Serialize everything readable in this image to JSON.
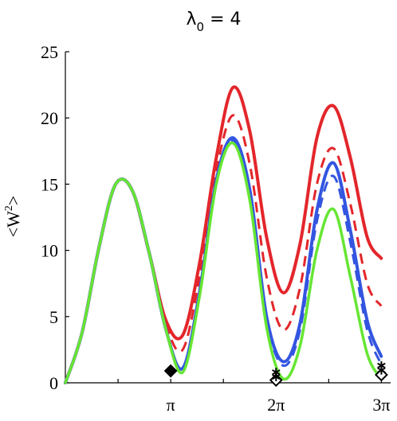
{
  "chart_data": {
    "type": "line",
    "title": {
      "symbol": "λ",
      "subscript": "0",
      "rest": " = 4"
    },
    "ylabel": {
      "main": "<W",
      "sup": "2",
      "end": ">"
    },
    "xlabel": "",
    "xlim": [
      0,
      9.7
    ],
    "ylim": [
      0,
      25
    ],
    "xticks": [
      {
        "value": 3.14159,
        "label": "π"
      },
      {
        "value": 6.28319,
        "label": "2π"
      },
      {
        "value": 9.42478,
        "label": "3π"
      }
    ],
    "yticks": [
      {
        "value": 0,
        "label": "0"
      },
      {
        "value": 5,
        "label": "5"
      },
      {
        "value": 10,
        "label": "10"
      },
      {
        "value": 15,
        "label": "15"
      },
      {
        "value": 20,
        "label": "20"
      },
      {
        "value": 25,
        "label": "25"
      }
    ],
    "series": [
      {
        "color": "#e3262b",
        "dash": "solid",
        "width": 4,
        "x": [
          0,
          0.5,
          1.0,
          1.5,
          2.0,
          2.5,
          3.0,
          3.5,
          4.0,
          4.5,
          5.0,
          5.5,
          6.0,
          6.5,
          7.0,
          7.5,
          8.0,
          8.5,
          9.0,
          9.42
        ],
        "y": [
          0,
          3.8,
          10.2,
          15.0,
          14.5,
          9.8,
          4.7,
          3.6,
          9.0,
          17.0,
          22.3,
          19.0,
          11.0,
          6.8,
          10.5,
          18.5,
          20.9,
          17.0,
          11.0,
          9.4
        ]
      },
      {
        "color": "#e3262b",
        "dash": "dashed",
        "width": 3,
        "x": [
          0,
          0.5,
          1.0,
          1.5,
          2.0,
          2.5,
          3.0,
          3.5,
          4.0,
          4.5,
          5.0,
          5.5,
          6.0,
          6.5,
          7.0,
          7.5,
          8.0,
          8.5,
          9.0,
          9.42
        ],
        "y": [
          0,
          3.8,
          10.2,
          15.0,
          14.5,
          9.8,
          4.4,
          2.5,
          8.0,
          16.0,
          20.2,
          16.5,
          8.0,
          4.0,
          7.2,
          15.0,
          17.7,
          13.5,
          7.5,
          5.8
        ]
      },
      {
        "color": "#3355e0",
        "dash": "solid",
        "width": 4,
        "x": [
          0,
          0.5,
          1.0,
          1.5,
          2.0,
          2.5,
          3.0,
          3.5,
          4.0,
          4.5,
          5.0,
          5.5,
          6.0,
          6.5,
          7.0,
          7.5,
          8.0,
          8.5,
          9.0,
          9.42
        ],
        "y": [
          0,
          3.8,
          10.2,
          15.0,
          14.5,
          9.8,
          4.0,
          1.1,
          6.8,
          15.3,
          18.5,
          14.6,
          5.0,
          1.6,
          4.5,
          13.0,
          16.6,
          11.5,
          4.7,
          2.0
        ]
      },
      {
        "color": "#3355e0",
        "dash": "dashed",
        "width": 3,
        "x": [
          0,
          0.5,
          1.0,
          1.5,
          2.0,
          2.5,
          3.0,
          3.5,
          4.0,
          4.5,
          5.0,
          5.5,
          6.0,
          6.5,
          7.0,
          7.5,
          8.0,
          8.5,
          9.0,
          9.42
        ],
        "y": [
          0,
          3.8,
          10.2,
          15.0,
          14.5,
          9.8,
          4.0,
          1.1,
          6.6,
          15.1,
          18.3,
          14.4,
          4.8,
          1.3,
          4.0,
          12.2,
          15.6,
          10.6,
          4.0,
          1.4
        ]
      },
      {
        "color": "#66e633",
        "dash": "solid",
        "width": 3.5,
        "x": [
          0,
          0.5,
          1.0,
          1.5,
          2.0,
          2.5,
          3.0,
          3.5,
          4.0,
          4.5,
          5.0,
          5.5,
          6.0,
          6.5,
          7.0,
          7.5,
          8.0,
          8.5,
          9.0,
          9.42
        ],
        "y": [
          0,
          3.8,
          10.2,
          15.0,
          14.5,
          9.8,
          4.0,
          0.8,
          6.5,
          15.0,
          18.1,
          13.8,
          4.2,
          0.3,
          2.8,
          10.0,
          13.1,
          8.0,
          2.2,
          0.3
        ]
      }
    ],
    "markers": [
      {
        "type": "diamond-filled",
        "x": 3.14159,
        "y": 0.9
      },
      {
        "type": "diamond-open",
        "x": 6.28319,
        "y": 0.2
      },
      {
        "type": "asterisk",
        "x": 6.28319,
        "y": 0.8
      },
      {
        "type": "asterisk",
        "x": 6.28319,
        "y": 0.45
      },
      {
        "type": "diamond-open",
        "x": 9.42478,
        "y": 0.6
      },
      {
        "type": "asterisk",
        "x": 9.42478,
        "y": 1.3
      },
      {
        "type": "asterisk",
        "x": 9.42478,
        "y": 0.95
      }
    ]
  }
}
